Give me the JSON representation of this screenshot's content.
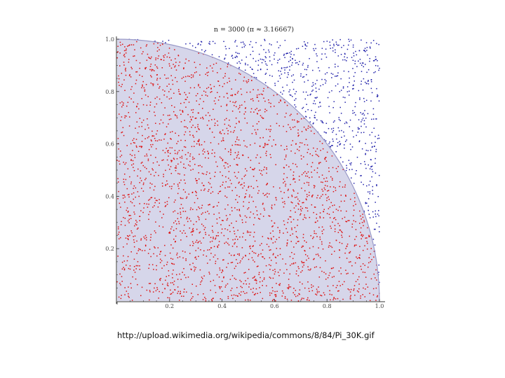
{
  "chart_data": {
    "type": "scatter",
    "title": "n = 3000 (π ≈ 3.16667)",
    "n": 3000,
    "pi_estimate": 3.16667,
    "xlim": [
      0,
      1
    ],
    "ylim": [
      0,
      1
    ],
    "x_ticks": [
      "0.2",
      "0.4",
      "0.6",
      "0.8",
      "1.0"
    ],
    "y_ticks": [
      "0.2",
      "0.4",
      "0.6",
      "0.8",
      "1.0"
    ],
    "grid": false,
    "series": [
      {
        "color": "#dd1111",
        "region": "inside quarter circle (x²+y² ≤ 1)"
      },
      {
        "color": "#2222aa",
        "region": "outside quarter circle"
      }
    ],
    "region_fill": "#d6d6ea",
    "arc_color": "#9a9ac8"
  },
  "caption": "http://upload.wikimedia.org/wikipedia/commons/8/84/Pi_30K.gif"
}
